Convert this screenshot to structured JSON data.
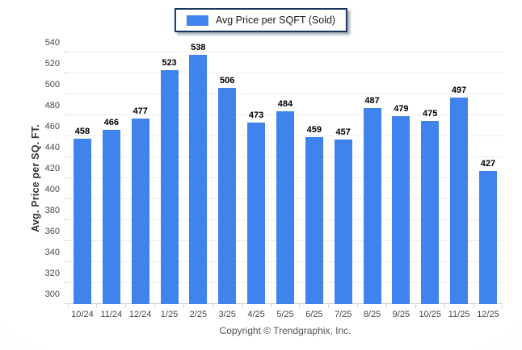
{
  "legend": {
    "label": "Avg Price per SQFT (Sold)",
    "swatch_color": "#4183ec"
  },
  "footer": {
    "copyright": "Copyright © Trendgraphix, Inc."
  },
  "chart_data": {
    "type": "bar",
    "categories": [
      "10/24",
      "11/24",
      "12/24",
      "1/25",
      "2/25",
      "3/25",
      "4/25",
      "5/25",
      "6/25",
      "7/25",
      "8/25",
      "9/25",
      "10/25",
      "11/25",
      "12/25"
    ],
    "values": [
      458,
      466,
      477,
      523,
      538,
      506,
      473,
      484,
      459,
      457,
      487,
      479,
      475,
      497,
      427
    ],
    "series_name": "Avg Price per SQFT (Sold)",
    "title": "",
    "xlabel": "",
    "ylabel": "Avg. Price per SQ. FT.",
    "ylim": [
      300,
      540
    ],
    "ytick_step": 20,
    "grid": true,
    "legend_position": "top-center",
    "bar_color": "#4183ec",
    "value_labels": true
  }
}
